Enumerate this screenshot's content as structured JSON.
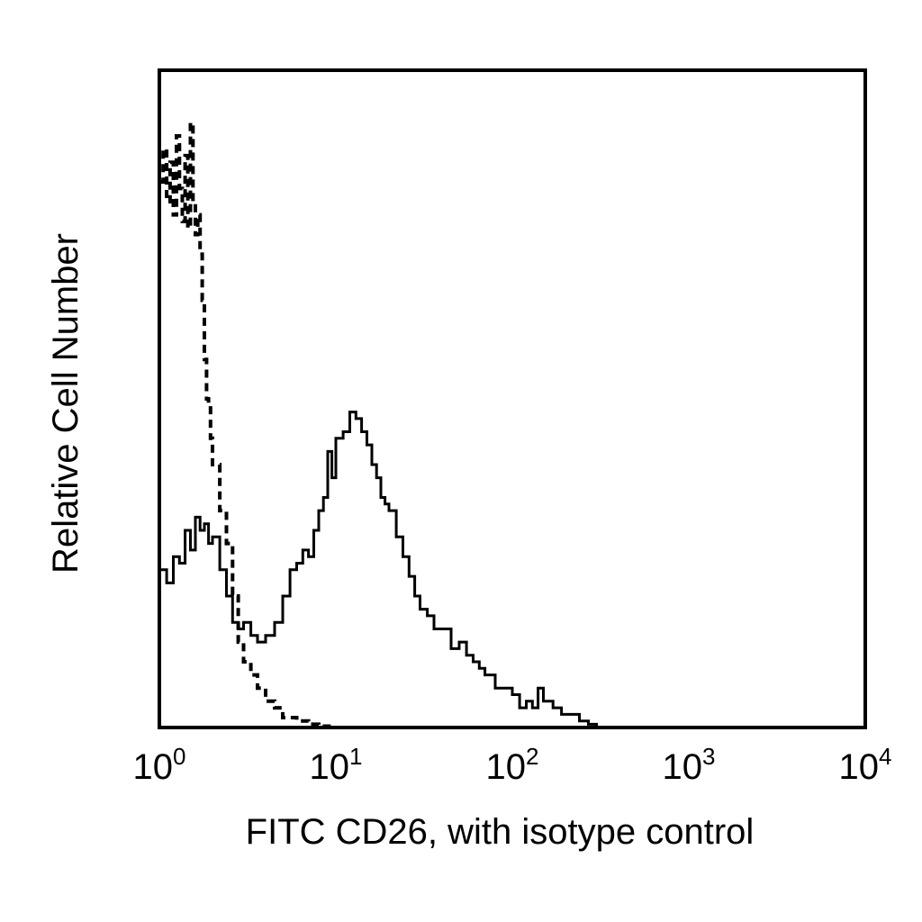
{
  "chart_data": {
    "type": "line",
    "title": "",
    "xlabel": "FITC CD26, with isotype control",
    "ylabel": "Relative Cell Number",
    "x_scale": "log",
    "xlim": [
      1,
      10000
    ],
    "ylim": [
      0,
      100
    ],
    "grid": false,
    "x_ticks": [
      {
        "base": "10",
        "exp": "0"
      },
      {
        "base": "10",
        "exp": "1"
      },
      {
        "base": "10",
        "exp": "2"
      },
      {
        "base": "10",
        "exp": "3"
      },
      {
        "base": "10",
        "exp": "4"
      }
    ],
    "series": [
      {
        "style": "solid",
        "color": "#000000",
        "x": [
          1.0,
          1.1,
          1.2,
          1.3,
          1.4,
          1.5,
          1.6,
          1.7,
          1.8,
          1.9,
          2.0,
          2.2,
          2.4,
          2.6,
          2.8,
          3.0,
          3.3,
          3.6,
          4.0,
          4.5,
          5.0,
          5.5,
          6.0,
          6.5,
          7.0,
          7.5,
          8.0,
          8.5,
          9.0,
          9.5,
          10,
          11,
          12,
          13,
          14,
          15,
          16,
          17,
          18,
          19,
          20,
          22,
          24,
          26,
          28,
          30,
          33,
          36,
          40,
          45,
          50,
          55,
          60,
          65,
          70,
          80,
          90,
          100,
          110,
          120,
          130,
          140,
          150,
          170,
          190,
          210,
          240,
          270,
          300
        ],
        "values": [
          24,
          22,
          26,
          25,
          30,
          27,
          32,
          30,
          31,
          28,
          29,
          24,
          20,
          16,
          15,
          16,
          14,
          13,
          14,
          16,
          20,
          24,
          25,
          27,
          26,
          30,
          33,
          35,
          42,
          38,
          44,
          45,
          48,
          47,
          45,
          43,
          40,
          38,
          35,
          34,
          33,
          29,
          26,
          23,
          20,
          18,
          17,
          15,
          15,
          12,
          13,
          11,
          10,
          9,
          8,
          6,
          6,
          5,
          3,
          4,
          3,
          6,
          4,
          3,
          2,
          2,
          1,
          0.5,
          0
        ]
      },
      {
        "style": "dashed",
        "color": "#000000",
        "x": [
          1.0,
          1.05,
          1.1,
          1.15,
          1.2,
          1.25,
          1.3,
          1.35,
          1.4,
          1.45,
          1.5,
          1.55,
          1.6,
          1.65,
          1.7,
          1.75,
          1.8,
          1.85,
          1.9,
          1.95,
          2.0,
          2.2,
          2.4,
          2.6,
          2.8,
          3.0,
          3.3,
          3.6,
          4.0,
          4.5,
          5.0,
          6.0,
          7.0,
          8.0,
          10
        ],
        "values": [
          83,
          88,
          80,
          86,
          78,
          90,
          82,
          77,
          87,
          76,
          92,
          80,
          75,
          78,
          72,
          65,
          56,
          50,
          49,
          44,
          40,
          33,
          28,
          20,
          13,
          10,
          8,
          6,
          4,
          3,
          1.5,
          1,
          0.5,
          0.2,
          0
        ]
      }
    ]
  }
}
